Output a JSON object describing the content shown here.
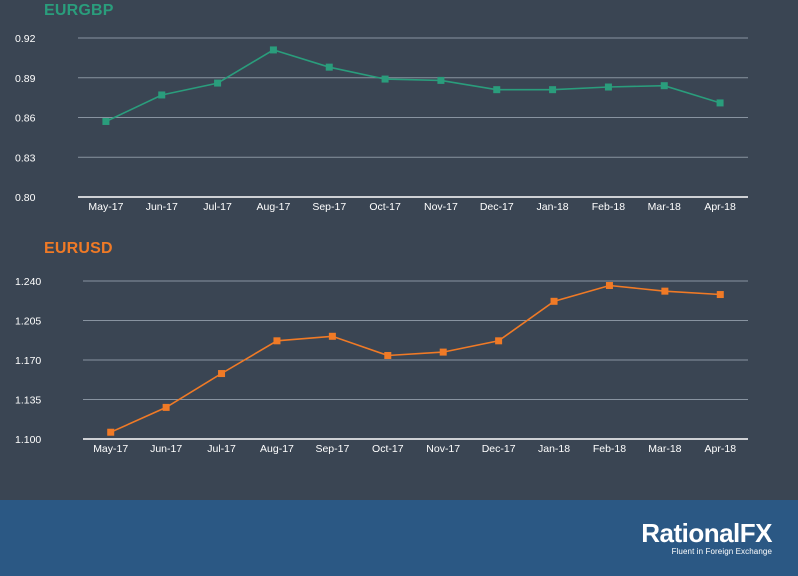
{
  "chart_data": [
    {
      "type": "line",
      "title": "EURGBP",
      "color": "#2a9d7c",
      "categories": [
        "May-17",
        "Jun-17",
        "Jul-17",
        "Aug-17",
        "Sep-17",
        "Oct-17",
        "Nov-17",
        "Dec-17",
        "Jan-18",
        "Feb-18",
        "Mar-18",
        "Apr-18"
      ],
      "values": [
        0.857,
        0.877,
        0.886,
        0.911,
        0.898,
        0.889,
        0.888,
        0.881,
        0.881,
        0.883,
        0.884,
        0.871
      ],
      "ylim": [
        0.8,
        0.92
      ],
      "yticks": [
        "0.80",
        "0.83",
        "0.86",
        "0.89",
        "0.92"
      ],
      "grid": true,
      "marker": "square"
    },
    {
      "type": "line",
      "title": "EURUSD",
      "color": "#f07a26",
      "categories": [
        "May-17",
        "Jun-17",
        "Jul-17",
        "Aug-17",
        "Sep-17",
        "Oct-17",
        "Nov-17",
        "Dec-17",
        "Jan-18",
        "Feb-18",
        "Mar-18",
        "Apr-18"
      ],
      "values": [
        1.106,
        1.128,
        1.158,
        1.187,
        1.191,
        1.174,
        1.177,
        1.187,
        1.222,
        1.236,
        1.231,
        1.228
      ],
      "ylim": [
        1.1,
        1.24
      ],
      "yticks": [
        "1.100",
        "1.135",
        "1.170",
        "1.205",
        "1.240"
      ],
      "grid": true,
      "marker": "square"
    }
  ],
  "footer": {
    "brand_name": "RationalFX",
    "tagline": "Fluent in Foreign Exchange",
    "background": "#2b5884"
  }
}
